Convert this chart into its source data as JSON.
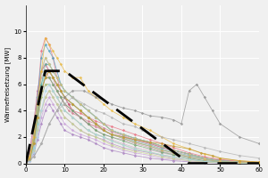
{
  "ylabel": "Wärmefreisetzung [MW]",
  "xlim": [
    0,
    60
  ],
  "ylim": [
    0,
    12
  ],
  "yticks": [
    0,
    2,
    4,
    6,
    8,
    10
  ],
  "xticks": [
    0,
    10,
    20,
    30,
    40,
    50,
    60
  ],
  "figsize": [
    3.0,
    2.0
  ],
  "dpi": 100,
  "background_color": "#f0f0f0",
  "design_curve": {
    "x": [
      0,
      5,
      10,
      42,
      60
    ],
    "y": [
      0,
      7,
      7,
      0,
      0
    ],
    "color": "black",
    "linewidth": 2.0,
    "dashes": [
      8,
      4
    ]
  },
  "series": [
    {
      "x": [
        0,
        1,
        2,
        3,
        4,
        5,
        6,
        7,
        8,
        9,
        10,
        11,
        12,
        14,
        16,
        18,
        20,
        22,
        25,
        28,
        32,
        35,
        38,
        42,
        46,
        50,
        55,
        60
      ],
      "y": [
        0,
        0.5,
        2,
        5,
        8.5,
        9.5,
        9,
        8,
        6.5,
        5.5,
        5,
        4.5,
        4,
        3.8,
        3.5,
        3.2,
        3,
        2.8,
        2.5,
        2.2,
        1.8,
        1.5,
        1.2,
        0.8,
        0.5,
        0.3,
        0.15,
        0.08
      ],
      "color": "#e87080"
    },
    {
      "x": [
        0,
        1,
        2,
        3,
        4,
        5,
        6,
        7,
        8,
        9,
        10,
        11,
        12,
        14,
        16,
        18,
        20,
        22,
        25,
        28,
        32,
        35,
        38,
        42,
        46,
        50,
        55,
        60
      ],
      "y": [
        0,
        1,
        3,
        5.5,
        7,
        7.5,
        7,
        6.5,
        6,
        5.5,
        5,
        4.5,
        4,
        3.5,
        3,
        2.8,
        2.5,
        2.2,
        2,
        1.8,
        1.5,
        1.2,
        1,
        0.7,
        0.4,
        0.25,
        0.1,
        0.05
      ],
      "color": "#c06080"
    },
    {
      "x": [
        0,
        1,
        2,
        3,
        4,
        5,
        6,
        7,
        8,
        9,
        10,
        11,
        12,
        14,
        16,
        18,
        20,
        22,
        25,
        28,
        32,
        35,
        38,
        42,
        46,
        50,
        55,
        60
      ],
      "y": [
        0,
        0.8,
        2.5,
        5,
        7,
        7.5,
        7,
        6.5,
        5.5,
        5,
        4.5,
        4,
        3.8,
        3.5,
        3.2,
        3,
        2.7,
        2.4,
        2.1,
        1.8,
        1.5,
        1.2,
        1,
        0.7,
        0.4,
        0.2,
        0.1,
        0.05
      ],
      "color": "#d08090"
    },
    {
      "x": [
        0,
        1,
        2,
        3,
        4,
        5,
        6,
        7,
        8,
        9,
        10,
        12,
        14,
        16,
        18,
        20,
        22,
        25,
        28,
        32,
        35,
        38,
        42,
        46,
        50,
        55,
        60
      ],
      "y": [
        0,
        0.5,
        2,
        4.5,
        6.5,
        7,
        6.5,
        6,
        5.5,
        5,
        4.5,
        4,
        3.5,
        3,
        2.8,
        2.5,
        2.2,
        2,
        1.7,
        1.4,
        1.1,
        0.9,
        0.6,
        0.4,
        0.2,
        0.1,
        0.05
      ],
      "color": "#e0a0b0"
    },
    {
      "x": [
        0,
        1,
        2,
        3,
        4,
        5,
        6,
        7,
        8,
        9,
        10,
        12,
        14,
        16,
        18,
        20,
        22,
        25,
        28,
        32,
        35,
        38,
        42,
        46,
        50,
        55,
        60
      ],
      "y": [
        0,
        0.3,
        1.5,
        3.5,
        5.5,
        6.5,
        6.5,
        6,
        5.5,
        5,
        4.5,
        4,
        3.5,
        3,
        2.5,
        2.2,
        2,
        1.8,
        1.5,
        1.2,
        0.9,
        0.7,
        0.5,
        0.3,
        0.15,
        0.07,
        0.03
      ],
      "color": "#c898b0"
    },
    {
      "x": [
        0,
        1,
        2,
        3,
        4,
        5,
        6,
        7,
        8,
        9,
        10,
        12,
        14,
        16,
        18,
        20,
        22,
        25,
        28,
        32,
        35,
        38,
        42,
        46,
        50,
        55,
        60
      ],
      "y": [
        0,
        0.3,
        1.2,
        3,
        5,
        6,
        6,
        5.5,
        5,
        4.5,
        4,
        3.5,
        3,
        2.5,
        2.2,
        2,
        1.8,
        1.5,
        1.2,
        1,
        0.8,
        0.6,
        0.4,
        0.2,
        0.1,
        0.05,
        0.02
      ],
      "color": "#d0b0c8"
    },
    {
      "x": [
        0,
        1,
        2,
        3,
        4,
        5,
        6,
        7,
        8,
        9,
        10,
        12,
        14,
        16,
        18,
        20,
        22,
        25,
        28,
        32,
        35,
        38,
        42,
        46,
        50,
        55,
        60
      ],
      "y": [
        0,
        0.3,
        1,
        2.5,
        4,
        5,
        5.5,
        5,
        4.5,
        4,
        3.5,
        3,
        2.5,
        2.2,
        2,
        1.8,
        1.5,
        1.2,
        1,
        0.8,
        0.6,
        0.4,
        0.3,
        0.15,
        0.08,
        0.03,
        0.01
      ],
      "color": "#b890c0"
    },
    {
      "x": [
        0,
        1,
        2,
        3,
        4,
        5,
        6,
        7,
        8,
        9,
        10,
        12,
        14,
        16,
        18,
        20,
        22,
        25,
        28,
        32,
        35,
        38,
        42,
        46,
        50,
        55,
        60
      ],
      "y": [
        0,
        0.3,
        0.8,
        2,
        3.5,
        4.5,
        5,
        4.5,
        4,
        3.5,
        3,
        2.5,
        2.2,
        2,
        1.8,
        1.5,
        1.3,
        1,
        0.8,
        0.6,
        0.4,
        0.3,
        0.2,
        0.1,
        0.05,
        0.02,
        0.01
      ],
      "color": "#c8a0d8"
    },
    {
      "x": [
        0,
        1,
        2,
        3,
        4,
        5,
        6,
        7,
        8,
        9,
        10,
        12,
        14,
        16,
        18,
        20,
        22,
        25,
        28,
        32,
        35,
        38,
        42,
        46,
        50,
        55,
        60
      ],
      "y": [
        0,
        0.2,
        0.7,
        1.8,
        3,
        4,
        4.5,
        4,
        3.5,
        3,
        2.5,
        2.2,
        2,
        1.8,
        1.5,
        1.2,
        1,
        0.8,
        0.6,
        0.4,
        0.3,
        0.2,
        0.12,
        0.07,
        0.03,
        0.01,
        0.005
      ],
      "color": "#a880c0"
    },
    {
      "x": [
        0,
        1,
        2,
        3,
        4,
        5,
        6,
        7,
        8,
        9,
        10,
        12,
        14,
        16,
        18,
        20,
        22,
        25,
        28,
        32,
        35,
        38,
        42,
        46,
        50,
        55,
        60
      ],
      "y": [
        0,
        0.5,
        2,
        4,
        6,
        7,
        7,
        6.5,
        6,
        5.5,
        5,
        4.5,
        4,
        3.5,
        3,
        2.5,
        2.2,
        1.9,
        1.6,
        1.3,
        1,
        0.8,
        0.5,
        0.3,
        0.15,
        0.07,
        0.03
      ],
      "color": "#90c090"
    },
    {
      "x": [
        0,
        1,
        2,
        3,
        4,
        5,
        6,
        7,
        8,
        9,
        10,
        12,
        14,
        16,
        18,
        20,
        22,
        25,
        28,
        32,
        35,
        38,
        42,
        46,
        50,
        55,
        60
      ],
      "y": [
        0,
        0.4,
        1.5,
        3.5,
        5.5,
        6.5,
        6.5,
        6,
        5.5,
        5,
        4.5,
        4,
        3.5,
        3,
        2.5,
        2.2,
        2,
        1.7,
        1.4,
        1.1,
        0.85,
        0.65,
        0.4,
        0.2,
        0.1,
        0.05,
        0.02
      ],
      "color": "#70a870"
    },
    {
      "x": [
        0,
        1,
        2,
        3,
        4,
        5,
        6,
        7,
        8,
        9,
        10,
        12,
        14,
        16,
        18,
        20,
        22,
        25,
        28,
        32,
        35,
        38,
        42,
        46,
        50,
        55,
        60
      ],
      "y": [
        0,
        0.3,
        1.2,
        3,
        5,
        6,
        6,
        5.5,
        5,
        4.5,
        4,
        3.5,
        3,
        2.5,
        2.2,
        2,
        1.7,
        1.4,
        1.1,
        0.85,
        0.65,
        0.5,
        0.3,
        0.15,
        0.07,
        0.03,
        0.01
      ],
      "color": "#a8c878"
    },
    {
      "x": [
        0,
        1,
        2,
        3,
        4,
        5,
        6,
        7,
        8,
        9,
        10,
        12,
        14,
        16,
        18,
        20,
        22,
        25,
        28,
        32,
        35,
        38,
        42,
        46,
        50,
        55,
        60
      ],
      "y": [
        0,
        0.3,
        1,
        2.5,
        4,
        5,
        5.5,
        5,
        4.5,
        4,
        3.5,
        3,
        2.5,
        2.2,
        2,
        1.7,
        1.4,
        1.1,
        0.9,
        0.7,
        0.5,
        0.35,
        0.2,
        0.1,
        0.05,
        0.02,
        0.01
      ],
      "color": "#c8d890"
    },
    {
      "x": [
        0,
        1,
        2,
        3,
        4,
        5,
        6,
        7,
        8,
        9,
        10,
        12,
        14,
        16,
        18,
        20,
        22,
        25,
        28,
        32,
        35,
        38,
        42,
        46,
        50,
        55,
        60
      ],
      "y": [
        0,
        0.5,
        2,
        4,
        6,
        7.5,
        7.5,
        7,
        6.5,
        6,
        5.5,
        5,
        4.5,
        4,
        3.5,
        3,
        2.5,
        2.2,
        1.9,
        1.6,
        1.3,
        1,
        0.7,
        0.4,
        0.2,
        0.1,
        0.05
      ],
      "color": "#60b0a0"
    },
    {
      "x": [
        0,
        1,
        2,
        3,
        4,
        5,
        6,
        7,
        8,
        9,
        10,
        12,
        14,
        16,
        18,
        20,
        22,
        25,
        28,
        32,
        35,
        38,
        42,
        46,
        50,
        55,
        60
      ],
      "y": [
        0,
        0.3,
        1.5,
        3.5,
        5.5,
        7,
        7,
        6.5,
        6,
        5.5,
        5,
        4.5,
        4,
        3.5,
        3,
        2.5,
        2.2,
        2,
        1.7,
        1.4,
        1.1,
        0.85,
        0.6,
        0.35,
        0.15,
        0.07,
        0.03
      ],
      "color": "#80c8c0"
    },
    {
      "x": [
        0,
        1,
        2,
        3,
        4,
        5,
        6,
        7,
        8,
        9,
        10,
        12,
        14,
        16,
        18,
        20,
        22,
        25,
        28,
        32,
        35,
        38,
        42,
        46,
        50,
        55,
        60
      ],
      "y": [
        0,
        0.4,
        2,
        5,
        8,
        9,
        8.5,
        8,
        7,
        6,
        5.5,
        5,
        4.5,
        4,
        3.5,
        3,
        2.5,
        2.2,
        1.9,
        1.6,
        1.3,
        1,
        0.7,
        0.4,
        0.2,
        0.1,
        0.05
      ],
      "color": "#50a0c0"
    },
    {
      "x": [
        0,
        1,
        2,
        3,
        4,
        5,
        6,
        7,
        8,
        9,
        10,
        12,
        14,
        16,
        18,
        20,
        22,
        25,
        28,
        32,
        35,
        38,
        42,
        46,
        50,
        55,
        60
      ],
      "y": [
        0,
        0.3,
        1.5,
        4,
        7,
        8,
        7.5,
        7,
        6.5,
        6,
        5.5,
        5,
        4.5,
        4,
        3.5,
        3,
        2.5,
        2.2,
        1.9,
        1.6,
        1.3,
        1,
        0.7,
        0.4,
        0.2,
        0.1,
        0.05
      ],
      "color": "#70b8d8"
    },
    {
      "x": [
        0,
        1,
        2,
        3,
        4,
        5,
        6,
        7,
        8,
        9,
        10,
        12,
        14,
        16,
        18,
        20,
        22,
        25,
        28,
        32,
        35,
        38,
        42,
        46,
        50,
        55,
        60
      ],
      "y": [
        0,
        0.3,
        1.2,
        3,
        5.5,
        7,
        7,
        6.5,
        6,
        5.5,
        5,
        4.5,
        4,
        3.5,
        3,
        2.5,
        2.2,
        1.9,
        1.6,
        1.3,
        1,
        0.8,
        0.5,
        0.3,
        0.12,
        0.06,
        0.02
      ],
      "color": "#90d0e8"
    },
    {
      "x": [
        0,
        1,
        2,
        3,
        4,
        5,
        6,
        7,
        8,
        9,
        10,
        12,
        14,
        16,
        18,
        20,
        22,
        25,
        28,
        32,
        35,
        38,
        42,
        46,
        50,
        55,
        60
      ],
      "y": [
        0,
        0.2,
        0.8,
        2,
        4,
        5.5,
        6,
        5.5,
        5,
        4.5,
        4,
        3.5,
        3,
        2.5,
        2.2,
        2,
        1.7,
        1.4,
        1.1,
        0.85,
        0.65,
        0.5,
        0.3,
        0.15,
        0.07,
        0.03,
        0.01
      ],
      "color": "#b0d8e8"
    },
    {
      "x": [
        0,
        1,
        2,
        3,
        4,
        5,
        6,
        7,
        8,
        9,
        10,
        12,
        14,
        16,
        18,
        20,
        22,
        25,
        28,
        32,
        35,
        38,
        42,
        46,
        50,
        55,
        60
      ],
      "y": [
        0,
        0.4,
        1.5,
        3.5,
        5.5,
        6.5,
        7,
        6.5,
        6,
        5.5,
        5,
        4.5,
        4,
        3.5,
        3,
        2.5,
        2.2,
        1.9,
        1.6,
        1.3,
        1,
        0.8,
        0.5,
        0.3,
        0.12,
        0.06,
        0.02
      ],
      "color": "#d0a860"
    },
    {
      "x": [
        0,
        1,
        2,
        3,
        4,
        5,
        6,
        7,
        8,
        9,
        10,
        12,
        14,
        16,
        18,
        20,
        22,
        25,
        28,
        32,
        35,
        38,
        42,
        46,
        50,
        55,
        60
      ],
      "y": [
        0,
        0.5,
        2,
        4.5,
        7,
        8,
        7.5,
        7,
        6.5,
        6,
        5.5,
        5,
        4.5,
        4,
        3.5,
        3,
        2.5,
        2.2,
        1.9,
        1.6,
        1.3,
        1,
        0.7,
        0.4,
        0.2,
        0.1,
        0.05
      ],
      "color": "#e0c070"
    },
    {
      "x": [
        0,
        1,
        2,
        3,
        4,
        5,
        6,
        7,
        8,
        9,
        10,
        12,
        14,
        16,
        18,
        20,
        22,
        25,
        28,
        32,
        35,
        38,
        42,
        46,
        50,
        55,
        60
      ],
      "y": [
        0,
        0.5,
        2,
        4.5,
        7,
        9.5,
        9,
        8.5,
        8,
        7.5,
        7,
        6.5,
        6.5,
        5.5,
        5,
        4.5,
        4,
        3.5,
        3,
        2.5,
        2,
        1.5,
        1.1,
        0.7,
        0.4,
        0.2,
        0.1
      ],
      "color": "#e8b840"
    },
    {
      "x": [
        0,
        1,
        2,
        3,
        4,
        5,
        6,
        7,
        8,
        9,
        10,
        12,
        14,
        16,
        18,
        20,
        22,
        25,
        28,
        32,
        35,
        38,
        42,
        45,
        48,
        50,
        55,
        60
      ],
      "y": [
        0,
        0.3,
        1.5,
        3.5,
        5.5,
        6.5,
        7,
        6.5,
        6,
        5.5,
        5,
        4.5,
        4,
        3.5,
        3,
        2.5,
        2.2,
        2,
        1.8,
        1.6,
        1.5,
        1.3,
        1.1,
        0.8,
        0.6,
        0.4,
        0.2,
        0.1
      ],
      "color": "#c09830"
    },
    {
      "x": [
        0,
        2,
        4,
        6,
        8,
        10,
        12,
        15,
        18,
        20,
        22,
        25,
        28,
        30,
        32,
        35,
        38,
        40,
        42,
        44,
        46,
        48,
        50,
        55,
        60
      ],
      "y": [
        0,
        0.5,
        1.5,
        3,
        4,
        5,
        5.5,
        5.5,
        5,
        4.8,
        4.5,
        4.2,
        4,
        3.8,
        3.6,
        3.5,
        3.3,
        3,
        5.5,
        6,
        5,
        4,
        3,
        2,
        1.5
      ],
      "color": "#909090"
    },
    {
      "x": [
        0,
        2,
        4,
        6,
        8,
        10,
        12,
        15,
        18,
        20,
        22,
        25,
        28,
        30,
        32,
        35,
        38,
        42,
        46,
        50,
        55,
        60
      ],
      "y": [
        0,
        0.5,
        1.5,
        3,
        4,
        4.5,
        5,
        4.5,
        4,
        3.8,
        3.5,
        3,
        2.8,
        2.5,
        2.2,
        2,
        1.8,
        1.5,
        1.2,
        0.9,
        0.6,
        0.4
      ],
      "color": "#b0b0b0"
    }
  ]
}
